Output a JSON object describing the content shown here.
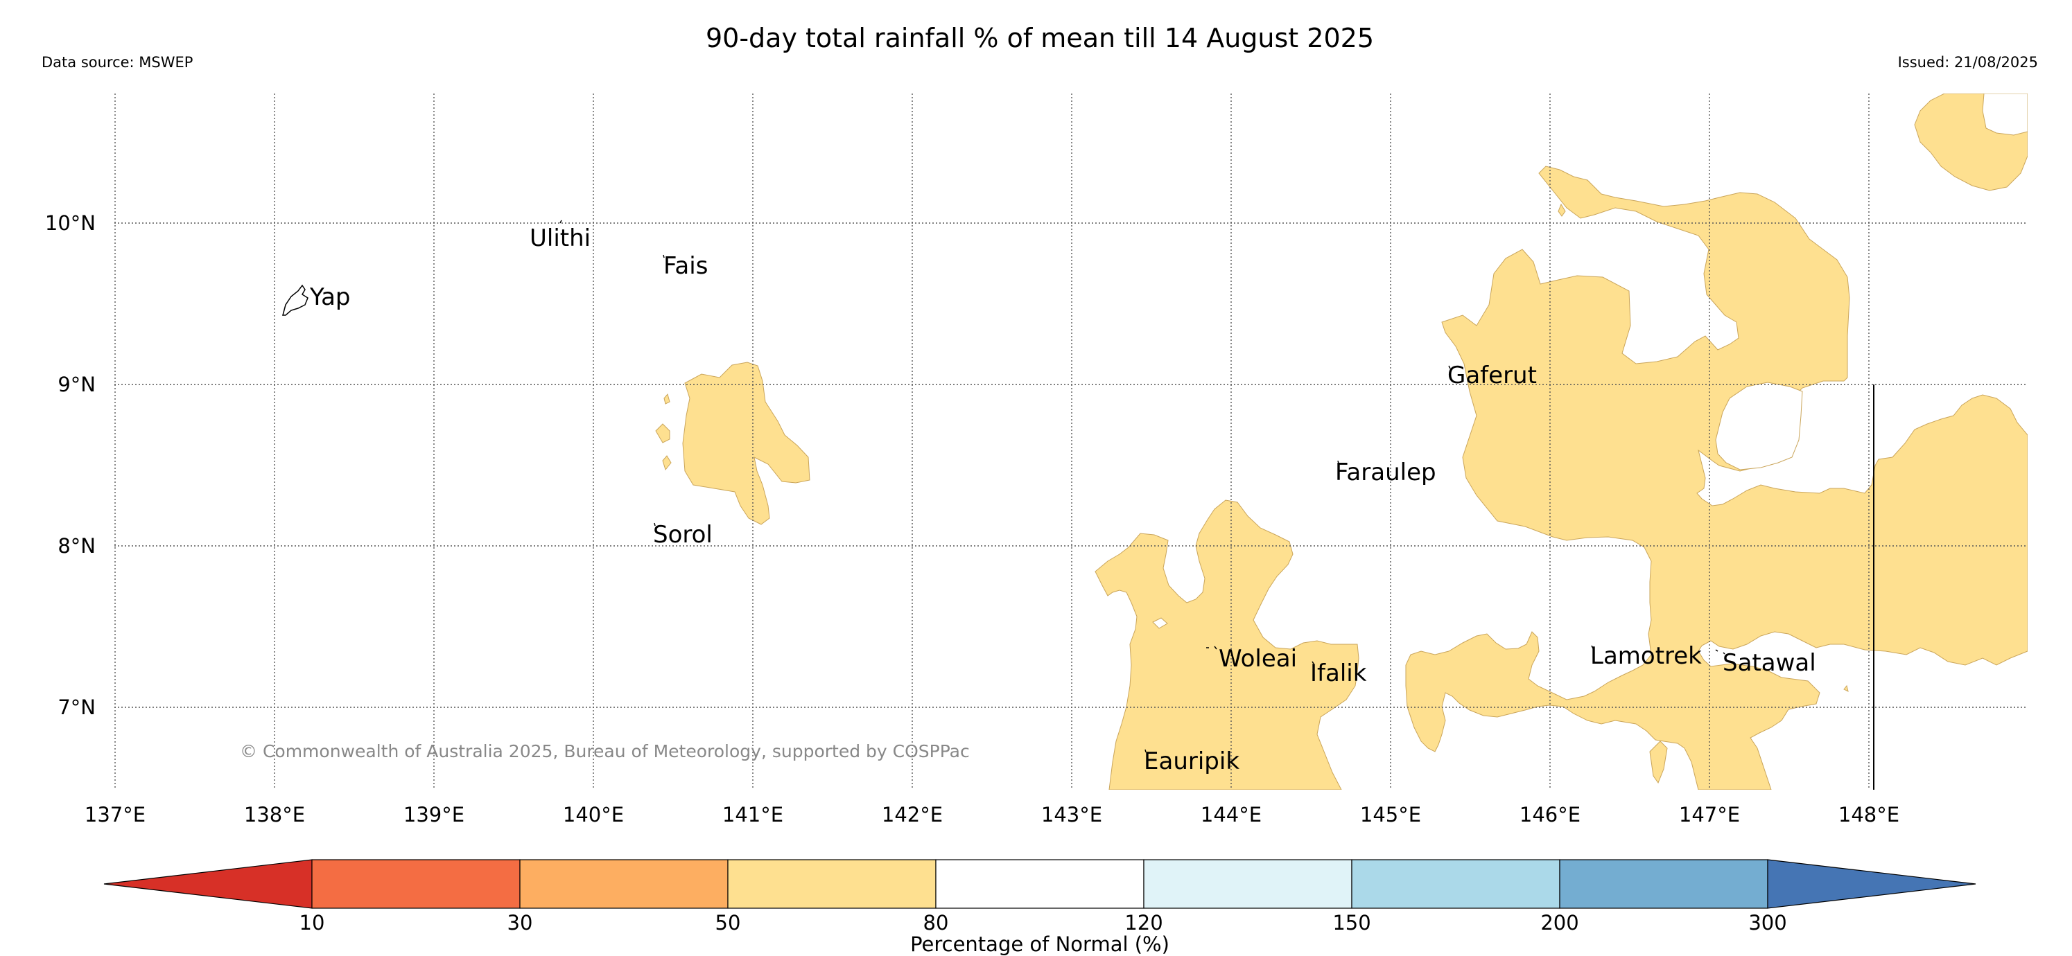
{
  "header": {
    "title": "90-day total rainfall % of mean till 14 August 2025",
    "data_source": "Data source: MSWEP",
    "issued": "Issued: 21/08/2025"
  },
  "map": {
    "lon_labels": [
      "137°E",
      "138°E",
      "139°E",
      "140°E",
      "141°E",
      "142°E",
      "143°E",
      "144°E",
      "145°E",
      "146°E",
      "147°E",
      "148°E"
    ],
    "lat_labels": [
      "10°N",
      "9°N",
      "8°N",
      "7°N"
    ],
    "places": [
      {
        "key": "yap",
        "name": "Yap"
      },
      {
        "key": "ulithi",
        "name": "Ulithi"
      },
      {
        "key": "fais",
        "name": "Fais"
      },
      {
        "key": "sorol",
        "name": "Sorol"
      },
      {
        "key": "gaferut",
        "name": "Gaferut"
      },
      {
        "key": "faraulep",
        "name": "Faraulep"
      },
      {
        "key": "woleai",
        "name": "Woleai"
      },
      {
        "key": "ifalik",
        "name": "Ifalik"
      },
      {
        "key": "eauripik",
        "name": "Eauripik"
      },
      {
        "key": "lamotrek",
        "name": "Lamotrek"
      },
      {
        "key": "satawal",
        "name": "Satawal"
      }
    ],
    "copyright": "© Commonwealth of Australia 2025, Bureau of Meteorology, supported by COSPPac",
    "shade_color": "#fee090"
  },
  "legend": {
    "ticks": [
      "10",
      "30",
      "50",
      "80",
      "120",
      "150",
      "200",
      "300"
    ],
    "colors": [
      "#d73027",
      "#f46d43",
      "#fdae61",
      "#fee090",
      "#ffffff",
      "#e0f3f8",
      "#abd9e9",
      "#74add1",
      "#4575b4"
    ],
    "label": "Percentage of Normal (%)"
  }
}
